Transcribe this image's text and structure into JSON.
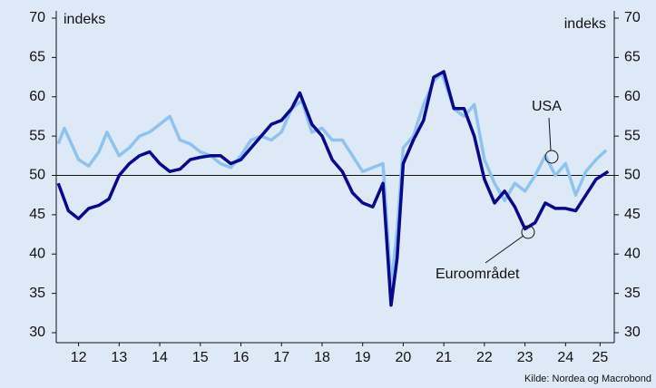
{
  "chart_data": {
    "type": "line",
    "y_label_left": "indeks",
    "y_label_right": "indeks",
    "source": "Kilde: Nordea og Macrobond",
    "annotations": [
      "USA",
      "Euroområdet"
    ],
    "reference_line": 50,
    "xlim": [
      2011.95,
      2025.7
    ],
    "xticks": [
      {
        "value": 2012.5,
        "label": "12"
      },
      {
        "value": 2013.5,
        "label": "13"
      },
      {
        "value": 2014.5,
        "label": "14"
      },
      {
        "value": 2015.5,
        "label": "15"
      },
      {
        "value": 2016.5,
        "label": "16"
      },
      {
        "value": 2017.5,
        "label": "17"
      },
      {
        "value": 2018.5,
        "label": "18"
      },
      {
        "value": 2019.5,
        "label": "19"
      },
      {
        "value": 2020.5,
        "label": "20"
      },
      {
        "value": 2021.5,
        "label": "21"
      },
      {
        "value": 2022.5,
        "label": "22"
      },
      {
        "value": 2023.5,
        "label": "23"
      },
      {
        "value": 2024.5,
        "label": "24"
      },
      {
        "value": 2025.35,
        "label": "25"
      }
    ],
    "ylim": [
      30,
      70
    ],
    "yticks": [
      30,
      35,
      40,
      45,
      50,
      55,
      60,
      65,
      70
    ],
    "y2lim": [
      30,
      70
    ],
    "y2ticks": [
      30,
      35,
      40,
      45,
      50,
      55,
      60,
      65,
      70
    ],
    "series": [
      {
        "name": "USA",
        "color": "#8ec3ef",
        "x": [
          2012.0,
          2012.15,
          2012.5,
          2012.75,
          2013.0,
          2013.2,
          2013.5,
          2013.75,
          2014.0,
          2014.25,
          2014.5,
          2014.75,
          2015.0,
          2015.25,
          2015.5,
          2015.75,
          2016.0,
          2016.25,
          2016.5,
          2016.75,
          2017.0,
          2017.25,
          2017.5,
          2017.75,
          2018.0,
          2018.25,
          2018.5,
          2018.75,
          2019.0,
          2019.25,
          2019.5,
          2019.75,
          2020.0,
          2020.2,
          2020.35,
          2020.5,
          2020.75,
          2021.0,
          2021.25,
          2021.45,
          2021.75,
          2022.0,
          2022.25,
          2022.5,
          2022.75,
          2023.0,
          2023.25,
          2023.5,
          2023.75,
          2024.0,
          2024.25,
          2024.5,
          2024.75,
          2025.0,
          2025.25,
          2025.5
        ],
        "values": [
          54,
          56,
          52,
          51.2,
          53,
          55.5,
          52.5,
          53.5,
          55,
          55.5,
          56.5,
          57.5,
          54.5,
          54,
          53,
          52.5,
          51.5,
          51,
          52.5,
          54.5,
          55,
          54.5,
          55.5,
          58.5,
          59.5,
          55.5,
          56,
          54.5,
          54.5,
          52.5,
          50.5,
          51,
          51.5,
          36,
          43,
          53.5,
          55,
          59,
          62,
          63,
          58.5,
          57.5,
          59,
          52,
          49,
          46.8,
          49,
          48,
          50,
          52.5,
          50,
          51.5,
          47.5,
          50.5,
          52,
          53.2
        ]
      },
      {
        "name": "Euroområdet",
        "color": "#07088c",
        "x": [
          2012.0,
          2012.25,
          2012.5,
          2012.75,
          2013.0,
          2013.25,
          2013.5,
          2013.75,
          2014.0,
          2014.25,
          2014.5,
          2014.75,
          2015.0,
          2015.25,
          2015.5,
          2015.75,
          2016.0,
          2016.25,
          2016.5,
          2016.75,
          2017.0,
          2017.25,
          2017.5,
          2017.75,
          2017.95,
          2018.25,
          2018.5,
          2018.75,
          2019.0,
          2019.25,
          2019.5,
          2019.75,
          2020.0,
          2020.2,
          2020.35,
          2020.5,
          2020.75,
          2021.0,
          2021.25,
          2021.5,
          2021.75,
          2022.0,
          2022.25,
          2022.5,
          2022.75,
          2023.0,
          2023.25,
          2023.5,
          2023.75,
          2024.0,
          2024.25,
          2024.5,
          2024.75,
          2025.0,
          2025.25,
          2025.55
        ],
        "values": [
          49,
          45.5,
          44.5,
          45.8,
          46.2,
          47,
          50,
          51.5,
          52.5,
          53,
          51.5,
          50.5,
          50.8,
          52,
          52.3,
          52.5,
          52.5,
          51.5,
          52,
          53.5,
          55,
          56.5,
          57,
          58.5,
          60.5,
          56.5,
          55,
          52,
          50.5,
          47.8,
          46.5,
          46,
          49,
          33.5,
          39.5,
          51.5,
          54.5,
          57,
          62.5,
          63.2,
          58.5,
          58.5,
          55,
          49.5,
          46.5,
          48,
          46,
          43.2,
          44,
          46.5,
          45.8,
          45.8,
          45.5,
          47.5,
          49.5,
          50.5
        ]
      }
    ]
  }
}
